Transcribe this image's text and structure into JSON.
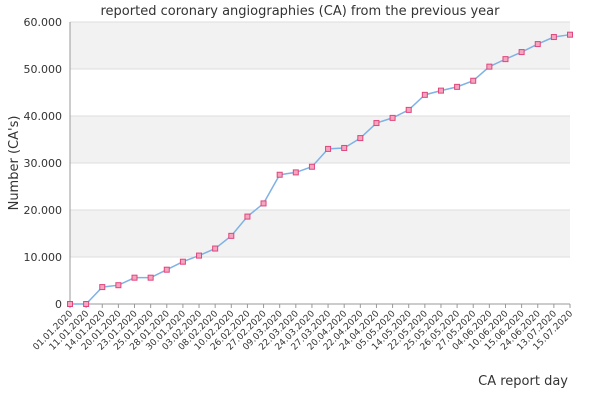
{
  "chart_data": {
    "type": "line",
    "title": "reported coronary angiographies (CA) from the previous year",
    "xlabel": "CA report day",
    "ylabel": "Number (CA's)",
    "categories": [
      "01.01.2020",
      "11.01.2020",
      "14.01.2020",
      "20.01.2020",
      "23.01.2020",
      "25.01.2020",
      "28.01.2020",
      "30.01.2020",
      "03.02.2020",
      "08.02.2020",
      "10.02.2020",
      "26.02.2020",
      "27.02.2020",
      "09.03.2020",
      "22.03.2020",
      "24.03.2020",
      "27.03.2020",
      "20.04.2020",
      "22.04.2020",
      "24.04.2020",
      "05.05.2020",
      "14.05.2020",
      "22.05.2020",
      "25.05.2020",
      "26.05.2020",
      "27.05.2020",
      "04.06.2020",
      "10.06.2020",
      "15.06.2020",
      "24.06.2020",
      "13.07.2020",
      "15.07.2020"
    ],
    "values": [
      0,
      0,
      3600,
      4000,
      5600,
      5600,
      7300,
      9000,
      10300,
      11800,
      14500,
      18600,
      21400,
      27500,
      28000,
      29200,
      33000,
      33200,
      35300,
      38500,
      39600,
      41300,
      44500,
      45400,
      46200,
      47500,
      50500,
      52100,
      53600,
      55300,
      56800,
      57300
    ],
    "color": "#7fb2e5",
    "marker_color": "#e0457b",
    "ylim": [
      0,
      60000
    ],
    "yticks": [
      0,
      {
        "value": 10000,
        "label": "10.000"
      },
      {
        "value": 20000,
        "label": "20.000"
      },
      {
        "value": 30000,
        "label": "30.000"
      },
      {
        "value": 40000,
        "label": "40.000"
      },
      {
        "value": 50000,
        "label": "50.000"
      },
      {
        "value": 60000,
        "label": "60.000"
      }
    ],
    "grid": true
  }
}
